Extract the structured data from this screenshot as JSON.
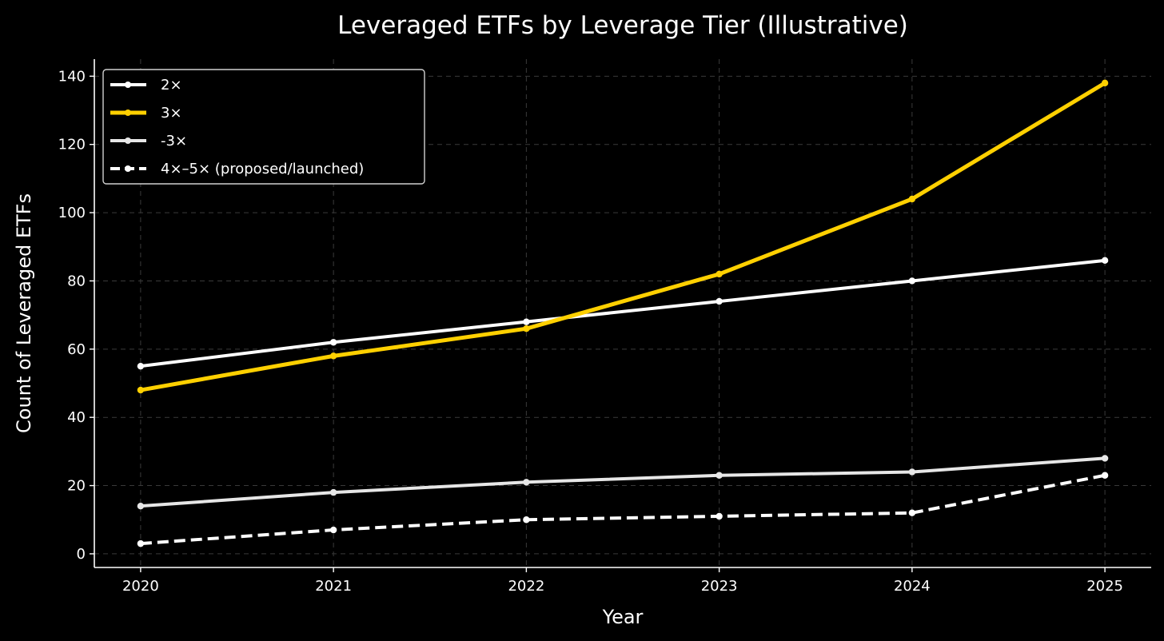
{
  "chart_data": {
    "type": "line",
    "title": "Leveraged ETFs by Leverage Tier (Illustrative)",
    "xlabel": "Year",
    "ylabel": "Count of Leveraged ETFs",
    "x": [
      2020,
      2021,
      2022,
      2023,
      2024,
      2025
    ],
    "xticks": [
      "2020",
      "2021",
      "2022",
      "2023",
      "2024",
      "2025"
    ],
    "yticks": [
      "0",
      "20",
      "40",
      "60",
      "80",
      "100",
      "120",
      "140"
    ],
    "xlim": [
      2019.76,
      2025.24
    ],
    "ylim": [
      -4,
      145
    ],
    "grid": true,
    "legend_position": "top-left",
    "series": [
      {
        "name": "2×",
        "values": [
          55,
          62,
          68,
          74,
          80,
          86
        ],
        "color": "#ffffff",
        "style": "solid",
        "key": "s2x"
      },
      {
        "name": "3×",
        "values": [
          48,
          58,
          66,
          82,
          104,
          138
        ],
        "color": "#ffd000",
        "style": "solid",
        "key": "s3x"
      },
      {
        "name": "-3×",
        "values": [
          14,
          18,
          21,
          23,
          24,
          28
        ],
        "color": "#e6e6e6",
        "style": "solid",
        "key": "sneg3x"
      },
      {
        "name": "4×–5× (proposed/launched)",
        "values": [
          3,
          7,
          10,
          11,
          12,
          23
        ],
        "color": "#ffffff",
        "style": "dashed",
        "key": "s45x"
      }
    ]
  }
}
